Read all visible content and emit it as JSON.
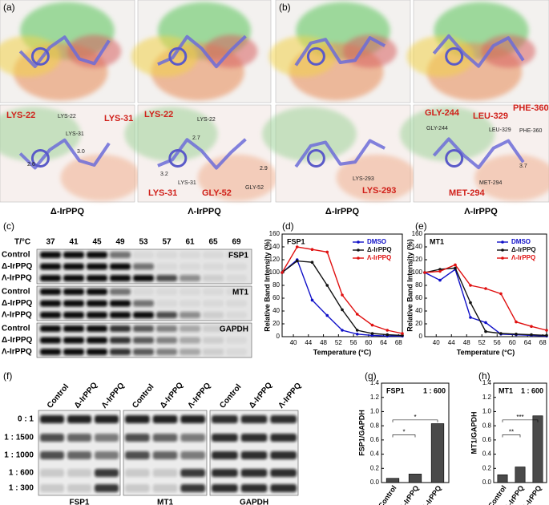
{
  "panel_labels": [
    "(a)",
    "(b)",
    "(c)",
    "(d)",
    "(e)",
    "(f)",
    "(g)",
    "(h)"
  ],
  "docking": {
    "captions": [
      "Δ-IrPPQ",
      "Λ-IrPPQ",
      "Δ-IrPPQ",
      "Λ-IrPPQ"
    ],
    "labels": [
      [
        "LYS-22",
        "LYS-22",
        "LYS-31",
        "LYS-31",
        "2.6",
        "3.0"
      ],
      [
        "LYS-22",
        "LYS-22",
        "2.7",
        "3.2",
        "LYS-31",
        "2.9",
        "LYS-31",
        "GLY-52",
        "GLY-52"
      ],
      [
        "LYS-293",
        "LYS-293"
      ],
      [
        "GLY-244",
        "LEU-329",
        "PHE-360",
        "GLY-244",
        "LEU-329",
        "PHE-360",
        "3.7",
        "MET-294",
        "MET-294"
      ]
    ]
  },
  "cetsa_blot": {
    "header": "T/°C",
    "temperatures": [
      37,
      41,
      45,
      49,
      53,
      57,
      61,
      65,
      69
    ],
    "rows": [
      "Control",
      "Δ-IrPPQ",
      "Λ-IrPPQ"
    ],
    "proteins": [
      "FSP1",
      "MT1",
      "GAPDH"
    ]
  },
  "ratio_blot": {
    "columns": [
      "Control",
      "Δ-IrPPQ",
      "Λ-IrPPQ"
    ],
    "ratios": [
      "0 : 1",
      "1 : 1500",
      "1 : 1000",
      "1 : 600",
      "1 : 300"
    ],
    "proteins": [
      "FSP1",
      "MT1",
      "GAPDH"
    ]
  },
  "chart_data": [
    {
      "type": "line",
      "title": "FSP1",
      "x_label": "Temperature (°C)",
      "y_label": "Relative Band Intensity (%)",
      "x": [
        37,
        41,
        45,
        49,
        53,
        57,
        61,
        65,
        69
      ],
      "series": [
        {
          "name": "DMSO",
          "color": "#1010c8",
          "values": [
            100,
            120,
            57,
            33,
            10,
            4,
            2,
            1,
            1
          ]
        },
        {
          "name": "Δ-IrPPQ",
          "color": "#111111",
          "values": [
            100,
            118,
            116,
            80,
            42,
            10,
            5,
            3,
            2
          ]
        },
        {
          "name": "Λ-IrPPQ",
          "color": "#e01010",
          "values": [
            100,
            140,
            136,
            132,
            65,
            35,
            18,
            10,
            5
          ]
        }
      ],
      "xlim": [
        37,
        69
      ],
      "xticks": [
        40,
        44,
        48,
        52,
        56,
        60,
        64,
        68
      ],
      "ylim": [
        0,
        160
      ],
      "yticks": [
        0,
        20,
        40,
        60,
        80,
        100,
        120,
        140,
        160
      ],
      "legend": "upper right"
    },
    {
      "type": "line",
      "title": "MT1",
      "x_label": "Temperature (°C)",
      "y_label": "Relative Band Intensity (%)",
      "x": [
        37,
        41,
        45,
        49,
        53,
        57,
        61,
        65,
        69
      ],
      "series": [
        {
          "name": "DMSO",
          "color": "#1010c8",
          "values": [
            100,
            88,
            105,
            30,
            22,
            4,
            3,
            2,
            1
          ]
        },
        {
          "name": "Δ-IrPPQ",
          "color": "#111111",
          "values": [
            100,
            105,
            107,
            53,
            8,
            5,
            4,
            3,
            2
          ]
        },
        {
          "name": "Λ-IrPPQ",
          "color": "#e01010",
          "values": [
            100,
            102,
            112,
            80,
            75,
            67,
            23,
            16,
            10
          ]
        }
      ],
      "xlim": [
        37,
        69
      ],
      "xticks": [
        40,
        44,
        48,
        52,
        56,
        60,
        64,
        68
      ],
      "ylim": [
        0,
        160
      ],
      "yticks": [
        0,
        20,
        40,
        60,
        80,
        100,
        120,
        140,
        160
      ],
      "legend": "upper right"
    },
    {
      "type": "bar",
      "title": "FSP1",
      "annotation": "1 : 600",
      "y_label": "FSP1/GAPDH",
      "categories": [
        "Control",
        "Δ-IrPPQ",
        "Λ-IrPPQ"
      ],
      "values": [
        0.06,
        0.12,
        0.83
      ],
      "color": "#4a4a4a",
      "significance": [
        "*",
        "*"
      ],
      "ylim": [
        0,
        1.4
      ],
      "yticks": [
        {
          "value": 0,
          "label": "0.0"
        },
        {
          "value": 0.2,
          "label": "0.2"
        },
        {
          "value": 0.4,
          "label": "0.4"
        },
        {
          "value": 0.6,
          "label": "0.6"
        },
        {
          "value": 0.8,
          "label": "0.8"
        },
        {
          "value": 1,
          "label": "1.0"
        },
        {
          "value": 1.2,
          "label": "1.2"
        },
        {
          "value": 1.4,
          "label": "1.4"
        }
      ]
    },
    {
      "type": "bar",
      "title": "MT1",
      "annotation": "1 : 600",
      "y_label": "MT1/GAPDH",
      "categories": [
        "Control",
        "Δ-IrPPQ",
        "Λ-IrPPQ"
      ],
      "values": [
        0.11,
        0.22,
        0.94
      ],
      "color": "#4a4a4a",
      "significance": [
        "**",
        "***"
      ],
      "ylim": [
        0,
        1.4
      ],
      "yticks": [
        {
          "value": 0,
          "label": "0.0"
        },
        {
          "value": 0.2,
          "label": "0.2"
        },
        {
          "value": 0.4,
          "label": "0.4"
        },
        {
          "value": 0.6,
          "label": "0.6"
        },
        {
          "value": 0.8,
          "label": "0.8"
        },
        {
          "value": 1,
          "label": "1.0"
        },
        {
          "value": 1.2,
          "label": "1.2"
        },
        {
          "value": 1.4,
          "label": "1.4"
        }
      ]
    }
  ]
}
